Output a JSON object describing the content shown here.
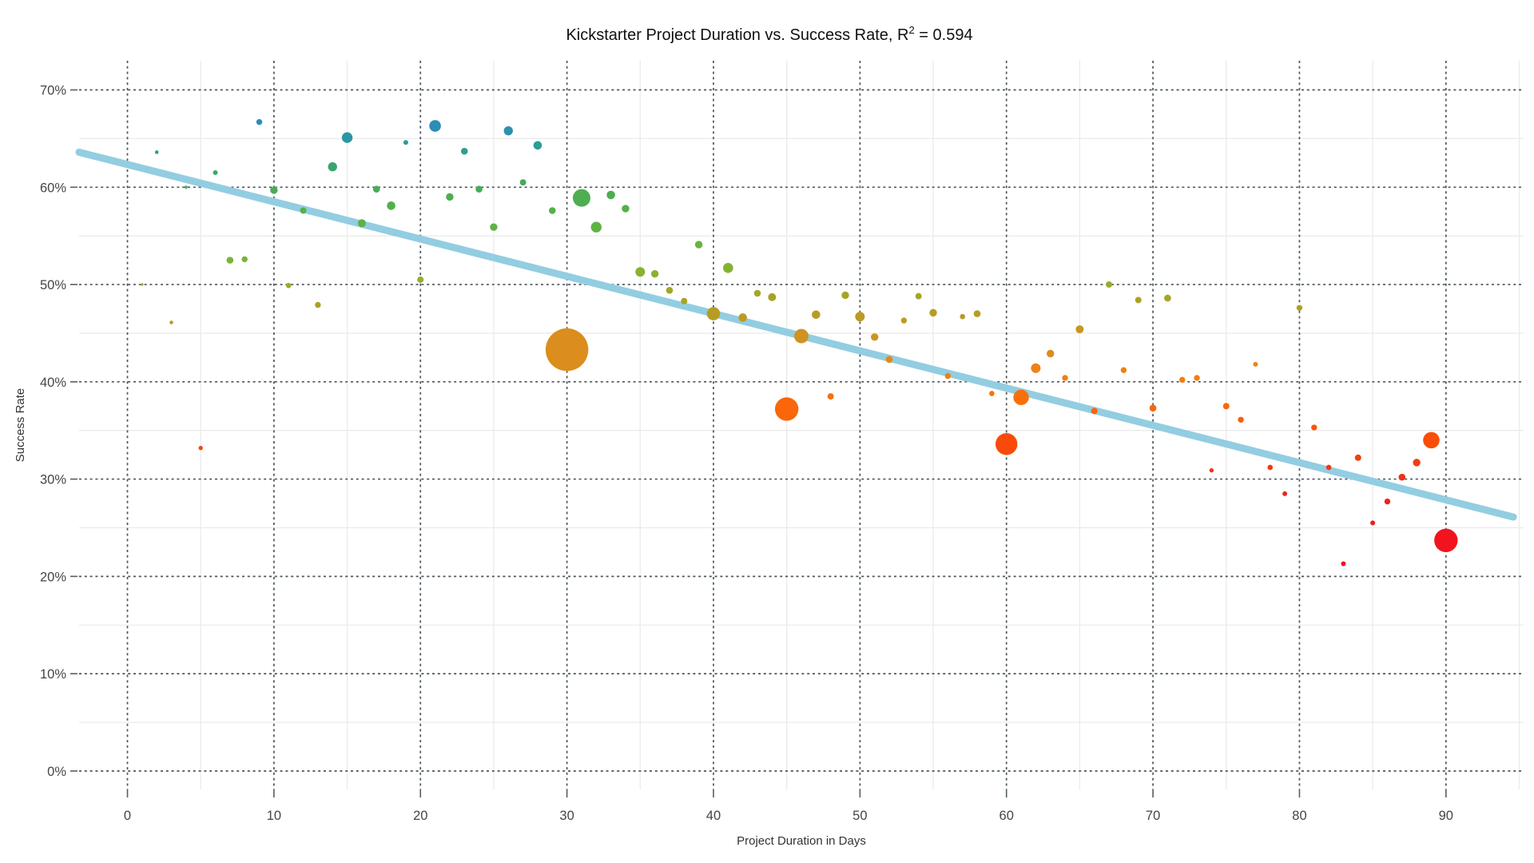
{
  "chart_data": {
    "type": "scatter",
    "title": "Kickstarter Project Duration vs. Success Rate, R2 = 0.594",
    "title_parts": {
      "prefix": "Kickstarter Project Duration vs. Success Rate, R",
      "sup": "2",
      "suffix": " = 0.594"
    },
    "r_squared": 0.594,
    "xlabel": "Project Duration in Days",
    "ylabel": "Success Rate",
    "xlim": [
      -3.3,
      95.3
    ],
    "ylim": [
      -1.9,
      73.0
    ],
    "x_major_ticks": [
      0,
      10,
      20,
      30,
      40,
      50,
      60,
      70,
      80,
      90
    ],
    "x_minor_ticks": [
      5,
      15,
      25,
      35,
      45,
      55,
      65,
      75,
      85,
      95
    ],
    "y_major_ticks": [
      0,
      10,
      20,
      30,
      40,
      50,
      60,
      70
    ],
    "y_minor_ticks": [
      5,
      15,
      25,
      35,
      45,
      55,
      65
    ],
    "y_tick_suffix": "%",
    "grid": {
      "major_color": "#4a565c",
      "minor_color": "#ebebeb",
      "major_dash": "3 3.8",
      "tick_color": "#555f63"
    },
    "trend": {
      "x1": -3.3,
      "y1": 63.6,
      "x2": 94.6,
      "y2": 26.1,
      "color": "#93cde1",
      "width": 9
    },
    "color_stops": [
      [
        21,
        "#f20f1e"
      ],
      [
        25,
        "#f1171e"
      ],
      [
        28.5,
        "#ef261a"
      ],
      [
        31.5,
        "#f13a13"
      ],
      [
        34,
        "#f94d0a"
      ],
      [
        36.5,
        "#fa6008"
      ],
      [
        38,
        "#f96d0b"
      ],
      [
        40,
        "#f37c11"
      ],
      [
        42,
        "#ea8518"
      ],
      [
        43.5,
        "#d98e1e"
      ],
      [
        45.5,
        "#c69722"
      ],
      [
        47.5,
        "#b29e25"
      ],
      [
        49,
        "#a3a627"
      ],
      [
        50.5,
        "#93af2b"
      ],
      [
        52,
        "#80b433"
      ],
      [
        54,
        "#69b43e"
      ],
      [
        58,
        "#52b14b"
      ],
      [
        61,
        "#42aa5e"
      ],
      [
        62.5,
        "#35a377"
      ],
      [
        64,
        "#2b9e95"
      ],
      [
        65.3,
        "#2b96a4"
      ],
      [
        66,
        "#2d90b0"
      ],
      [
        67,
        "#2e89bb"
      ]
    ],
    "points_legend": "each point = [project_duration_days, success_rate_percent, bubble_radius_px]",
    "points": [
      [
        1,
        50.0,
        1.7
      ],
      [
        2,
        63.6,
        2.3
      ],
      [
        3,
        46.1,
        2.3
      ],
      [
        4,
        60.0,
        2.0
      ],
      [
        5,
        33.2,
        2.7
      ],
      [
        6,
        61.5,
        3.0
      ],
      [
        7,
        52.5,
        4.3
      ],
      [
        8,
        52.6,
        3.7
      ],
      [
        9,
        66.7,
        3.7
      ],
      [
        10,
        59.7,
        4.7
      ],
      [
        11,
        49.9,
        3.3
      ],
      [
        12,
        57.6,
        4.0
      ],
      [
        13,
        47.9,
        3.7
      ],
      [
        14,
        62.1,
        5.7
      ],
      [
        15,
        65.1,
        6.7
      ],
      [
        16,
        56.3,
        5.0
      ],
      [
        17,
        59.8,
        4.3
      ],
      [
        18,
        58.1,
        5.3
      ],
      [
        19,
        64.6,
        3.0
      ],
      [
        20,
        50.5,
        4.0
      ],
      [
        21,
        66.3,
        7.3
      ],
      [
        22,
        59.0,
        4.7
      ],
      [
        23,
        63.7,
        4.3
      ],
      [
        24,
        59.8,
        4.3
      ],
      [
        25,
        55.9,
        4.7
      ],
      [
        26,
        65.8,
        5.7
      ],
      [
        27,
        60.5,
        4.0
      ],
      [
        28,
        64.3,
        5.3
      ],
      [
        29,
        57.6,
        4.3
      ],
      [
        30,
        43.3,
        26.7
      ],
      [
        31,
        58.9,
        11.0
      ],
      [
        32,
        55.9,
        6.7
      ],
      [
        33,
        59.2,
        5.3
      ],
      [
        34,
        57.8,
        4.7
      ],
      [
        35,
        51.3,
        6.0
      ],
      [
        36,
        51.1,
        4.7
      ],
      [
        37,
        49.4,
        4.3
      ],
      [
        38,
        48.3,
        4.0
      ],
      [
        39,
        54.1,
        4.7
      ],
      [
        40,
        47.0,
        8.3
      ],
      [
        41,
        51.7,
        6.3
      ],
      [
        42,
        46.6,
        5.3
      ],
      [
        43,
        49.1,
        4.3
      ],
      [
        44,
        48.7,
        5.0
      ],
      [
        45,
        37.2,
        14.7
      ],
      [
        46,
        44.7,
        9.0
      ],
      [
        47,
        46.9,
        5.3
      ],
      [
        48,
        38.5,
        4.0
      ],
      [
        49,
        48.9,
        4.7
      ],
      [
        50,
        46.7,
        6.0
      ],
      [
        51,
        44.6,
        4.7
      ],
      [
        52,
        42.3,
        4.3
      ],
      [
        53,
        46.3,
        3.7
      ],
      [
        54,
        48.8,
        4.0
      ],
      [
        55,
        47.1,
        4.7
      ],
      [
        56,
        40.6,
        3.7
      ],
      [
        57,
        46.7,
        3.3
      ],
      [
        58,
        47.0,
        4.3
      ],
      [
        59,
        38.8,
        3.3
      ],
      [
        60,
        33.6,
        13.7
      ],
      [
        61,
        38.4,
        9.7
      ],
      [
        62,
        41.4,
        6.0
      ],
      [
        63,
        42.9,
        4.7
      ],
      [
        64,
        40.4,
        3.7
      ],
      [
        65,
        45.4,
        5.0
      ],
      [
        66,
        37.0,
        4.0
      ],
      [
        67,
        50.0,
        4.0
      ],
      [
        68,
        41.2,
        3.7
      ],
      [
        69,
        48.4,
        4.0
      ],
      [
        70,
        37.3,
        4.3
      ],
      [
        71,
        48.6,
        4.3
      ],
      [
        72,
        40.2,
        3.7
      ],
      [
        73,
        40.4,
        3.7
      ],
      [
        74,
        30.9,
        2.7
      ],
      [
        75,
        37.5,
        4.0
      ],
      [
        76,
        36.1,
        3.7
      ],
      [
        77,
        41.8,
        3.0
      ],
      [
        78,
        31.2,
        3.3
      ],
      [
        79,
        28.5,
        3.0
      ],
      [
        80,
        47.6,
        3.7
      ],
      [
        81,
        35.3,
        3.7
      ],
      [
        82,
        31.2,
        3.3
      ],
      [
        83,
        21.3,
        3.0
      ],
      [
        84,
        32.2,
        4.0
      ],
      [
        85,
        25.5,
        3.0
      ],
      [
        86,
        27.7,
        3.7
      ],
      [
        87,
        30.2,
        4.3
      ],
      [
        88,
        31.7,
        4.7
      ],
      [
        89,
        34.0,
        10.3
      ],
      [
        90,
        23.7,
        14.7
      ]
    ]
  }
}
